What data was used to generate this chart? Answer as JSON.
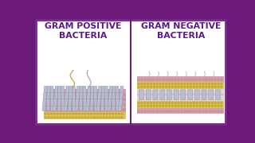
{
  "bg_outer": "#6b1a7a",
  "bg_inner": "#ffffff",
  "title_color": "#5b1a8a",
  "divider_color": "#6b1a7a",
  "left_title": "GRAM POSITIVE\nBACTERIA",
  "right_title": "GRAM NEGATIVE\nBACTERIA",
  "layer_pink": "#d4a0aa",
  "layer_yellow": "#d8c45a",
  "protein_color": "#b8bdd0",
  "protein_edge": "#8090a8",
  "flagella_tan": "#c8a050",
  "flagella_purple": "#b0a0c8",
  "pili_color": "#b0a8c8",
  "periplasm_color": "#e0d0d8",
  "border_color": "#7a2a8a"
}
